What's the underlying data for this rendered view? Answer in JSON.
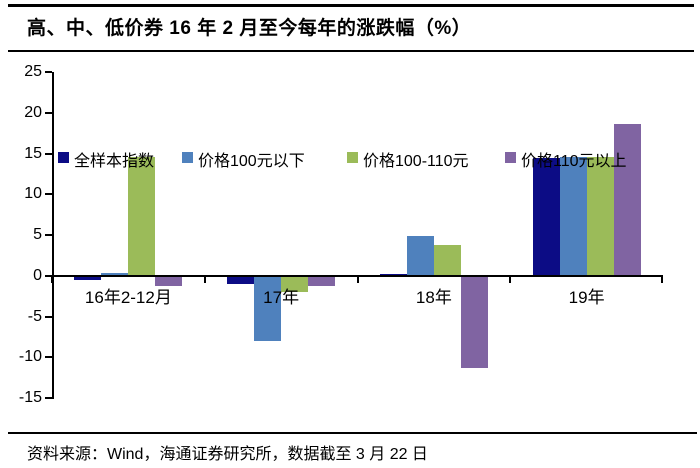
{
  "title": "高、中、低价券 16 年 2 月至今每年的涨跌幅（%）",
  "source_note": "资料来源：Wind，海通证券研究所，数据截至 3 月 22 日",
  "chart_data": {
    "type": "bar",
    "title": "高、中、低价券 16 年 2 月至今每年的涨跌幅（%）",
    "categories": [
      "16年2-12月",
      "17年",
      "18年",
      "19年"
    ],
    "series": [
      {
        "name": "全样本指数",
        "color": "#0C0C85",
        "values": [
          -0.5,
          -1.0,
          0.2,
          14.5
        ]
      },
      {
        "name": "价格100元以下",
        "color": "#4F81BD",
        "values": [
          0.3,
          -8.0,
          4.9,
          14.6
        ]
      },
      {
        "name": "价格100-110元",
        "color": "#9BBB59",
        "values": [
          14.6,
          -2.0,
          3.8,
          14.6
        ]
      },
      {
        "name": "价格110元以上",
        "color": "#8064A2",
        "values": [
          -1.2,
          -1.3,
          -11.3,
          18.6
        ]
      }
    ],
    "ylim": [
      -15,
      25
    ],
    "ytick_step": 5,
    "xlabel": "",
    "ylabel": "",
    "grid": false,
    "legend_position": "top",
    "axis_color": "#000000"
  }
}
